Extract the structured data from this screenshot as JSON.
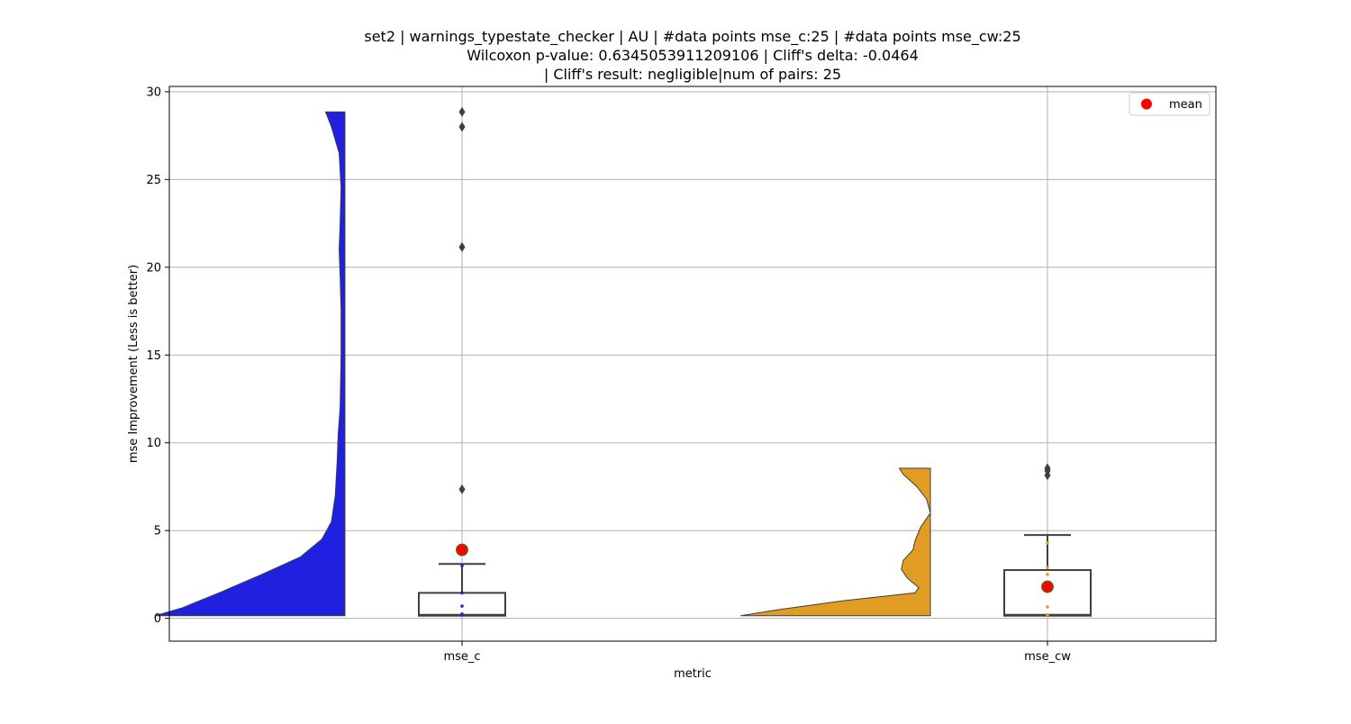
{
  "chart_data": {
    "type": "violin",
    "title_lines": [
      "set2 | warnings_typestate_checker | AU | #data points mse_c:25 | #data points mse_cw:25",
      "Wilcoxon p-value: 0.6345053911209106 | Cliff's delta: -0.0464",
      "| Cliff's result: negligible|num of pairs: 25"
    ],
    "xlabel": "metric",
    "ylabel": "mse Improvement (Less is better)",
    "ylim": [
      -1.3,
      30.3
    ],
    "yticks": [
      0,
      5,
      10,
      15,
      20,
      25,
      30
    ],
    "categories": [
      "mse_c",
      "mse_cw"
    ],
    "grid": true,
    "legend": {
      "position": "top-right",
      "entries": [
        {
          "label": "mean",
          "color": "#ff0000"
        }
      ]
    },
    "series": [
      {
        "category": "mse_c",
        "color": "#2020e0",
        "density": [
          [
            0.15,
            0.98
          ],
          [
            0.6,
            0.84
          ],
          [
            1.5,
            0.64
          ],
          [
            2.5,
            0.43
          ],
          [
            3.5,
            0.23
          ],
          [
            4.5,
            0.12
          ],
          [
            5.5,
            0.07
          ],
          [
            7,
            0.05
          ],
          [
            9,
            0.04
          ],
          [
            10.5,
            0.035
          ],
          [
            12,
            0.025
          ],
          [
            15,
            0.02
          ],
          [
            17.5,
            0.02
          ],
          [
            19.5,
            0.025
          ],
          [
            21,
            0.03
          ],
          [
            22.5,
            0.025
          ],
          [
            24.5,
            0.02
          ],
          [
            26.5,
            0.03
          ],
          [
            28,
            0.07
          ],
          [
            28.85,
            0.1
          ]
        ],
        "box": {
          "q1": 0.15,
          "median": 0.2,
          "q3": 1.45,
          "whisker_low": 0.15,
          "whisker_high": 3.1
        },
        "outliers": [
          7.35,
          21.15,
          28.0,
          28.85
        ],
        "mean": 3.9,
        "points": [
          0.2,
          0.25,
          0.7,
          1.45,
          3.0
        ]
      },
      {
        "category": "mse_cw",
        "color": "#e19c24",
        "density": [
          [
            0.15,
            0.98
          ],
          [
            0.5,
            0.78
          ],
          [
            1.0,
            0.45
          ],
          [
            1.45,
            0.08
          ],
          [
            1.75,
            0.06
          ],
          [
            2.3,
            0.12
          ],
          [
            2.8,
            0.15
          ],
          [
            3.3,
            0.14
          ],
          [
            3.9,
            0.09
          ],
          [
            4.4,
            0.08
          ],
          [
            5.2,
            0.05
          ],
          [
            6.0,
            0.0
          ],
          [
            6.8,
            0.02
          ],
          [
            7.5,
            0.07
          ],
          [
            8.2,
            0.14
          ],
          [
            8.55,
            0.16
          ]
        ],
        "box": {
          "q1": 0.15,
          "median": 0.2,
          "q3": 2.75,
          "whisker_low": 0.15,
          "whisker_high": 4.75
        },
        "outliers": [
          8.15,
          8.4,
          8.55
        ],
        "mean": 1.8,
        "points": [
          0.2,
          0.65,
          2.5,
          2.9,
          4.3
        ]
      }
    ]
  }
}
